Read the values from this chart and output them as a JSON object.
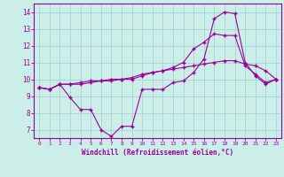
{
  "xlabel": "Windchill (Refroidissement éolien,°C)",
  "bg_color": "#cceee8",
  "grid_color": "#aad8d4",
  "line_color": "#990099",
  "xlim": [
    -0.5,
    23.5
  ],
  "ylim": [
    6.5,
    14.5
  ],
  "xticks": [
    0,
    1,
    2,
    3,
    4,
    5,
    6,
    7,
    8,
    9,
    10,
    11,
    12,
    13,
    14,
    15,
    16,
    17,
    18,
    19,
    20,
    21,
    22,
    23
  ],
  "yticks": [
    7,
    8,
    9,
    10,
    11,
    12,
    13,
    14
  ],
  "series1": [
    9.5,
    9.4,
    9.7,
    8.9,
    8.2,
    8.2,
    7.0,
    6.6,
    7.2,
    7.2,
    9.4,
    9.4,
    9.4,
    9.8,
    9.9,
    10.4,
    11.2,
    13.6,
    14.0,
    13.9,
    11.0,
    10.2,
    9.7,
    10.0
  ],
  "series2": [
    9.5,
    9.4,
    9.7,
    9.7,
    9.7,
    9.8,
    9.9,
    9.9,
    10.0,
    10.0,
    10.2,
    10.4,
    10.5,
    10.7,
    11.0,
    11.8,
    12.2,
    12.7,
    12.6,
    12.6,
    10.8,
    10.3,
    9.8,
    10.0
  ],
  "series3": [
    9.5,
    9.4,
    9.7,
    9.7,
    9.8,
    9.9,
    9.9,
    10.0,
    10.0,
    10.1,
    10.3,
    10.4,
    10.5,
    10.6,
    10.7,
    10.8,
    10.9,
    11.0,
    11.1,
    11.1,
    10.9,
    10.8,
    10.5,
    10.0
  ]
}
